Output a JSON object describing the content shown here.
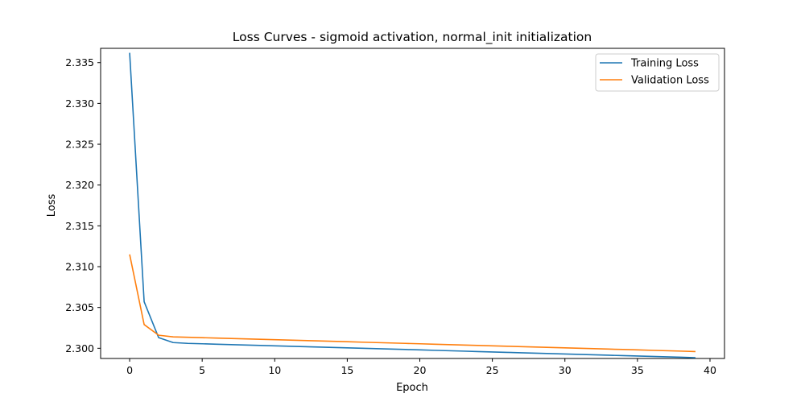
{
  "chart_data": {
    "type": "line",
    "title": "Loss Curves - sigmoid activation, normal_init initialization",
    "xlabel": "Epoch",
    "ylabel": "Loss",
    "xlim": [
      -2,
      41
    ],
    "ylim": [
      2.29875,
      2.33675
    ],
    "x_ticks": [
      0,
      5,
      10,
      15,
      20,
      25,
      30,
      35,
      40
    ],
    "x_tick_labels": [
      "0",
      "5",
      "10",
      "15",
      "20",
      "25",
      "30",
      "35",
      "40"
    ],
    "y_ticks": [
      2.3,
      2.305,
      2.31,
      2.315,
      2.32,
      2.325,
      2.33,
      2.335
    ],
    "y_tick_labels": [
      "2.300",
      "2.305",
      "2.310",
      "2.315",
      "2.320",
      "2.325",
      "2.330",
      "2.335"
    ],
    "grid": false,
    "legend_position": "top-right",
    "x": [
      0,
      1,
      2,
      3,
      4,
      5,
      6,
      7,
      8,
      9,
      10,
      11,
      12,
      13,
      14,
      15,
      16,
      17,
      18,
      19,
      20,
      21,
      22,
      23,
      24,
      25,
      26,
      27,
      28,
      29,
      30,
      31,
      32,
      33,
      34,
      35,
      36,
      37,
      38,
      39
    ],
    "series": [
      {
        "name": "Training Loss",
        "color": "#1f77b4",
        "values": [
          2.3362,
          2.3057,
          2.3013,
          2.3007,
          2.3006,
          2.30055,
          2.3005,
          2.30045,
          2.3004,
          2.30035,
          2.3003,
          2.30025,
          2.3002,
          2.30015,
          2.3001,
          2.30005,
          2.3,
          2.29995,
          2.2999,
          2.29985,
          2.2998,
          2.29975,
          2.2997,
          2.29965,
          2.2996,
          2.29955,
          2.2995,
          2.29945,
          2.2994,
          2.29935,
          2.2993,
          2.29925,
          2.2992,
          2.29915,
          2.2991,
          2.29905,
          2.299,
          2.29895,
          2.2989,
          2.29885
        ]
      },
      {
        "name": "Validation Loss",
        "color": "#ff7f0e",
        "values": [
          2.3115,
          2.3029,
          2.3016,
          2.3014,
          2.30135,
          2.3013,
          2.30125,
          2.3012,
          2.30115,
          2.3011,
          2.30105,
          2.301,
          2.30095,
          2.3009,
          2.30085,
          2.3008,
          2.30075,
          2.3007,
          2.30065,
          2.3006,
          2.30055,
          2.3005,
          2.30045,
          2.3004,
          2.30035,
          2.3003,
          2.30025,
          2.3002,
          2.30015,
          2.3001,
          2.30005,
          2.3,
          2.29995,
          2.2999,
          2.29985,
          2.2998,
          2.29975,
          2.2997,
          2.29965,
          2.2996
        ]
      }
    ]
  }
}
